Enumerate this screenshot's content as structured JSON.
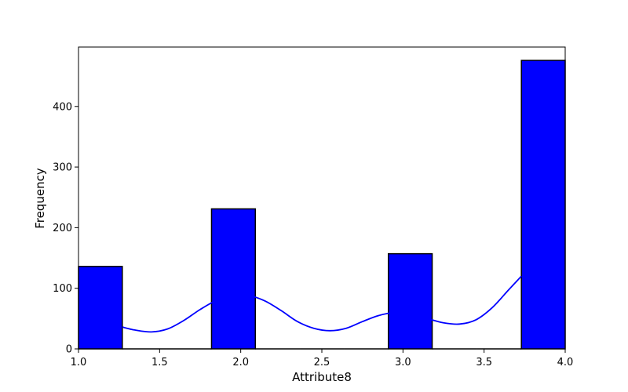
{
  "chart_data": {
    "type": "bar",
    "title": "",
    "xlabel": "Attribute8",
    "ylabel": "Frequency",
    "xlim": [
      1.0,
      4.0
    ],
    "ylim": [
      0,
      500
    ],
    "bar_color": "#0000ff",
    "edge_color": "#000000",
    "kde_color": "#0000ff",
    "grid": false,
    "x_ticks": [
      "1.0",
      "1.5",
      "2.0",
      "2.5",
      "3.0",
      "3.5",
      "4.0"
    ],
    "y_ticks": [
      "0",
      "100",
      "200",
      "300",
      "400"
    ],
    "bins": [
      {
        "x0": 1.0,
        "x1": 1.27,
        "value": 136
      },
      {
        "x0": 1.27,
        "x1": 1.545,
        "value": 0
      },
      {
        "x0": 1.545,
        "x1": 1.82,
        "value": 0
      },
      {
        "x0": 1.82,
        "x1": 2.09,
        "value": 231
      },
      {
        "x0": 2.09,
        "x1": 2.365,
        "value": 0
      },
      {
        "x0": 2.365,
        "x1": 2.64,
        "value": 0
      },
      {
        "x0": 2.64,
        "x1": 2.91,
        "value": 0
      },
      {
        "x0": 2.91,
        "x1": 3.18,
        "value": 157
      },
      {
        "x0": 3.18,
        "x1": 3.455,
        "value": 0
      },
      {
        "x0": 3.455,
        "x1": 3.73,
        "value": 0
      },
      {
        "x0": 3.73,
        "x1": 4.0,
        "value": 476
      }
    ],
    "kde": {
      "x": [
        1.27,
        1.35,
        1.45,
        1.55,
        1.65,
        1.75,
        1.85,
        1.95,
        2.05,
        2.15,
        2.25,
        2.35,
        2.45,
        2.55,
        2.65,
        2.75,
        2.85,
        2.95,
        3.05,
        3.15,
        3.25,
        3.35,
        3.45,
        3.55,
        3.65,
        3.73
      ],
      "y": [
        36,
        31,
        28,
        33,
        47,
        65,
        80,
        88,
        88,
        79,
        63,
        45,
        34,
        30,
        34,
        45,
        55,
        60,
        57,
        50,
        43,
        41,
        48,
        68,
        97,
        120
      ]
    }
  }
}
